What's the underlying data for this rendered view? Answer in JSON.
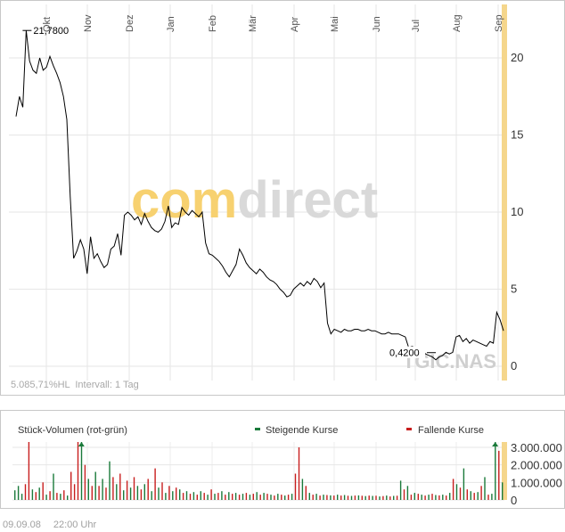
{
  "brand": {
    "logo_left": "com",
    "logo_right": "direct",
    "logo_left_color": "#f7d170",
    "logo_right_color": "#d9d9d9"
  },
  "footer": {
    "date": "09.09.08",
    "time": "22:00 Uhr"
  },
  "chart_data": [
    {
      "type": "line",
      "months": [
        "Okt",
        "Nov",
        "Dez",
        "Jan",
        "Feb",
        "Mär",
        "Apr",
        "Mai",
        "Jun",
        "Jul",
        "Aug",
        "Sep"
      ],
      "y_ticks": [
        "20",
        "15",
        "10",
        "5",
        "0"
      ],
      "ylim": [
        0,
        22.7
      ],
      "grid": true,
      "watermark": "TGIC.NAS",
      "info_text": "5.085,71%HL  Intervall: 1 Tag",
      "max_label": "21,7800",
      "min_label": "0,4200",
      "line_color": "#000000",
      "highlight_color": "#f5d68c",
      "series": [
        {
          "values": [
            16.2,
            17.5,
            16.8,
            21.78,
            19.8,
            19.2,
            19.0,
            20.0,
            19.2,
            19.4,
            20.1,
            19.5,
            19.0,
            18.4,
            17.5,
            16.0,
            11.0,
            7.0,
            7.5,
            8.2,
            7.6,
            6.0,
            8.4,
            7.0,
            7.3,
            6.8,
            6.4,
            6.6,
            7.6,
            7.8,
            8.6,
            7.2,
            9.8,
            10.0,
            9.8,
            9.5,
            9.7,
            9.2,
            9.9,
            9.4,
            9.0,
            8.8,
            8.7,
            8.9,
            9.4,
            10.4,
            9.0,
            9.3,
            9.2,
            10.3,
            10.0,
            9.8,
            10.1,
            9.9,
            9.7,
            10.0,
            8.0,
            7.3,
            7.2,
            7.0,
            6.8,
            6.5,
            6.1,
            5.8,
            6.2,
            6.6,
            7.6,
            7.2,
            6.7,
            6.4,
            6.2,
            6.0,
            6.3,
            6.1,
            5.8,
            5.6,
            5.5,
            5.3,
            5.0,
            4.8,
            4.5,
            4.6,
            5.0,
            5.2,
            5.4,
            5.2,
            5.5,
            5.3,
            5.7,
            5.5,
            5.1,
            5.4,
            2.8,
            2.1,
            2.4,
            2.3,
            2.2,
            2.4,
            2.3,
            2.3,
            2.4,
            2.4,
            2.3,
            2.3,
            2.4,
            2.3,
            2.3,
            2.2,
            2.1,
            2.1,
            2.2,
            2.1,
            2.1,
            2.1,
            2.0,
            1.9,
            1.2,
            1.3,
            1.2,
            1.1,
            1.0,
            0.8,
            0.7,
            0.6,
            0.42,
            0.6,
            0.7,
            0.9,
            0.8,
            0.9,
            1.9,
            2.0,
            1.6,
            1.8,
            1.5,
            1.7,
            1.6,
            1.5,
            1.4,
            1.3,
            1.6,
            1.5,
            3.5,
            3.0,
            2.3
          ]
        }
      ]
    },
    {
      "type": "bar",
      "title": "Stück-Volumen (rot-grün)",
      "legend": [
        {
          "name": "Steigende Kurse",
          "color": "#1a7a3a"
        },
        {
          "name": "Fallende Kurse",
          "color": "#c81e1e"
        }
      ],
      "y_ticks": [
        "3.000.000",
        "2.000.000",
        "1.000.000",
        "0"
      ],
      "ylim": [
        0,
        3500000
      ],
      "values": [
        550000,
        800000,
        350000,
        900000,
        3400000,
        600000,
        450000,
        700000,
        1000000,
        300000,
        500000,
        1500000,
        400000,
        350000,
        550000,
        250000,
        1600000,
        900000,
        3400000,
        3400000,
        2000000,
        1200000,
        800000,
        1600000,
        800000,
        1200000,
        700000,
        2200000,
        1300000,
        900000,
        1500000,
        550000,
        1100000,
        700000,
        1300000,
        800000,
        600000,
        900000,
        1200000,
        500000,
        1800000,
        700000,
        1000000,
        400000,
        800000,
        500000,
        700000,
        600000,
        400000,
        500000,
        350000,
        450000,
        300000,
        500000,
        400000,
        300000,
        600000,
        350000,
        400000,
        500000,
        300000,
        450000,
        350000,
        400000,
        300000,
        350000,
        400000,
        300000,
        350000,
        450000,
        300000,
        400000,
        350000,
        300000,
        250000,
        350000,
        300000,
        250000,
        300000,
        350000,
        1500000,
        3000000,
        1200000,
        800000,
        400000,
        300000,
        350000,
        250000,
        300000,
        280000,
        260000,
        250000,
        300000,
        250000,
        280000,
        240000,
        230000,
        250000,
        260000,
        240000,
        220000,
        250000,
        230000,
        240000,
        200000,
        220000,
        250000,
        200000,
        230000,
        240000,
        1100000,
        600000,
        800000,
        300000,
        400000,
        350000,
        300000,
        250000,
        300000,
        350000,
        280000,
        260000,
        300000,
        250000,
        400000,
        1200000,
        900000,
        700000,
        1800000,
        600000,
        500000,
        400000,
        450000,
        800000,
        1300000,
        300000,
        350000,
        3400000,
        2800000,
        1000000
      ],
      "rising": [
        true,
        true,
        true,
        false,
        false,
        true,
        false,
        true,
        false,
        true,
        false,
        true,
        false,
        true,
        false,
        true,
        false,
        false,
        false,
        true,
        false,
        true,
        false,
        true,
        false,
        true,
        false,
        true,
        false,
        true,
        false,
        true,
        false,
        true,
        false,
        true,
        false,
        true,
        false,
        true,
        false,
        true,
        false,
        true,
        false,
        true,
        false,
        true,
        false,
        true,
        false,
        true,
        false,
        true,
        false,
        true,
        false,
        true,
        false,
        true,
        false,
        true,
        false,
        true,
        false,
        true,
        false,
        true,
        false,
        true,
        false,
        true,
        false,
        true,
        false,
        true,
        false,
        true,
        false,
        true,
        false,
        false,
        true,
        false,
        true,
        false,
        true,
        false,
        true,
        false,
        true,
        false,
        true,
        false,
        true,
        false,
        true,
        false,
        true,
        false,
        true,
        false,
        true,
        false,
        true,
        false,
        true,
        false,
        true,
        false,
        true,
        false,
        true,
        false,
        true,
        false,
        true,
        false,
        true,
        false,
        true,
        false,
        true,
        false,
        true,
        false,
        true,
        false,
        true,
        false,
        true,
        false,
        true,
        false,
        true,
        false,
        true,
        true,
        false,
        true
      ]
    }
  ]
}
